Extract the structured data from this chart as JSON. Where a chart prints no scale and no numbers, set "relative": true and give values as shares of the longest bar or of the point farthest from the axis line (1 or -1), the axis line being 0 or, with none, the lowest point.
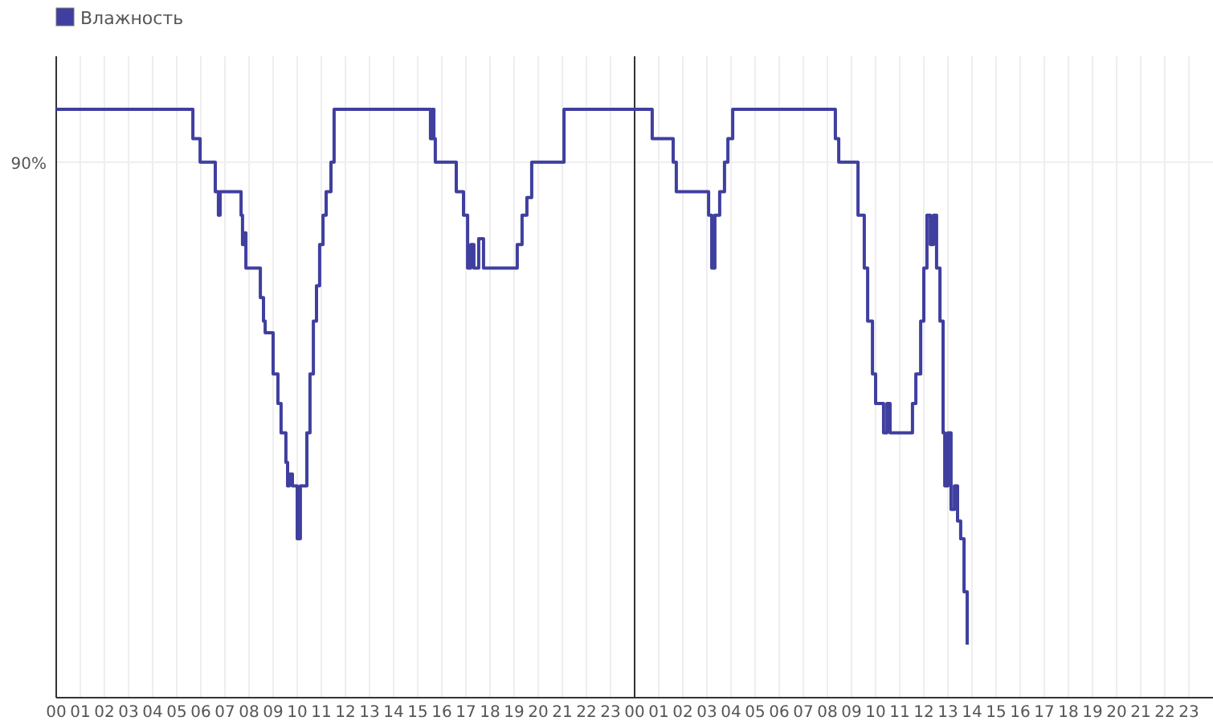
{
  "chart_data": {
    "type": "step",
    "relative": true,
    "legend": "top left",
    "grid": "x",
    "xlim": [
      0,
      48
    ],
    "xticks": [
      {
        "value": 0,
        "label": "00"
      },
      {
        "value": 1,
        "label": "01"
      },
      {
        "value": 2,
        "label": "02"
      },
      {
        "value": 3,
        "label": "03"
      },
      {
        "value": 4,
        "label": "04"
      },
      {
        "value": 5,
        "label": "05"
      },
      {
        "value": 6,
        "label": "06"
      },
      {
        "value": 7,
        "label": "07"
      },
      {
        "value": 8,
        "label": "08"
      },
      {
        "value": 9,
        "label": "09"
      },
      {
        "value": 10,
        "label": "10"
      },
      {
        "value": 11,
        "label": "11"
      },
      {
        "value": 12,
        "label": "12"
      },
      {
        "value": 13,
        "label": "13"
      },
      {
        "value": 14,
        "label": "14"
      },
      {
        "value": 15,
        "label": "15"
      },
      {
        "value": 16,
        "label": "16"
      },
      {
        "value": 17,
        "label": "17"
      },
      {
        "value": 18,
        "label": "18"
      },
      {
        "value": 19,
        "label": "19"
      },
      {
        "value": 20,
        "label": "20"
      },
      {
        "value": 21,
        "label": "21"
      },
      {
        "value": 22,
        "label": "22"
      },
      {
        "value": 23,
        "label": "23"
      },
      {
        "value": 24,
        "label": "00"
      },
      {
        "value": 25,
        "label": "01"
      },
      {
        "value": 26,
        "label": "02"
      },
      {
        "value": 27,
        "label": "03"
      },
      {
        "value": 28,
        "label": "04"
      },
      {
        "value": 29,
        "label": "05"
      },
      {
        "value": 30,
        "label": "06"
      },
      {
        "value": 31,
        "label": "07"
      },
      {
        "value": 32,
        "label": "08"
      },
      {
        "value": 33,
        "label": "09"
      },
      {
        "value": 34,
        "label": "10"
      },
      {
        "value": 35,
        "label": "11"
      },
      {
        "value": 36,
        "label": "12"
      },
      {
        "value": 37,
        "label": "13"
      },
      {
        "value": 38,
        "label": "14"
      },
      {
        "value": 39,
        "label": "15"
      },
      {
        "value": 40,
        "label": "16"
      },
      {
        "value": 41,
        "label": "17"
      },
      {
        "value": 42,
        "label": "18"
      },
      {
        "value": 43,
        "label": "19"
      },
      {
        "value": 44,
        "label": "20"
      },
      {
        "value": 45,
        "label": "21"
      },
      {
        "value": 46,
        "label": "22"
      },
      {
        "value": 47,
        "label": "23"
      }
    ],
    "annotations": [
      "90%"
    ],
    "ref_lines": [
      {
        "axis": "y",
        "value": 0.91,
        "color": "#eeeeee"
      },
      {
        "axis": "x",
        "value": 24,
        "color": "#333333"
      }
    ],
    "series": [
      {
        "name": "Влажность",
        "color": "#3f3f9f",
        "x": [
          0,
          5.67,
          5.97,
          6.6,
          6.73,
          6.8,
          7.67,
          7.73,
          7.8,
          7.87,
          8.47,
          8.6,
          8.67,
          9.0,
          9.2,
          9.33,
          9.53,
          9.6,
          9.67,
          9.8,
          10.0,
          10.13,
          10.4,
          10.53,
          10.67,
          10.8,
          10.93,
          11.07,
          11.2,
          11.4,
          11.53,
          15.53,
          15.6,
          15.67,
          15.73,
          16.6,
          16.9,
          17.07,
          17.2,
          17.33,
          17.53,
          17.73,
          19.13,
          19.33,
          19.53,
          19.73,
          21.07,
          24.73,
          25.6,
          25.73,
          27.07,
          27.2,
          27.33,
          27.53,
          27.73,
          27.87,
          28.07,
          32.33,
          32.47,
          32.6,
          33.27,
          33.53,
          33.67,
          33.87,
          34.0,
          34.33,
          34.47,
          34.6,
          34.73,
          35.53,
          35.67,
          35.87,
          36.0,
          36.13,
          36.27,
          36.4,
          36.53,
          36.67,
          36.8,
          36.87,
          37.0,
          37.13,
          37.27,
          37.4,
          37.53,
          37.67,
          37.8
        ],
        "values": [
          1.0,
          0.95,
          0.91,
          0.86,
          0.82,
          0.86,
          0.82,
          0.77,
          0.79,
          0.73,
          0.68,
          0.64,
          0.62,
          0.55,
          0.5,
          0.45,
          0.4,
          0.36,
          0.38,
          0.36,
          0.27,
          0.36,
          0.45,
          0.55,
          0.64,
          0.7,
          0.77,
          0.82,
          0.86,
          0.91,
          1.0,
          0.95,
          1.0,
          0.95,
          0.91,
          0.86,
          0.82,
          0.73,
          0.77,
          0.73,
          0.78,
          0.73,
          0.77,
          0.82,
          0.85,
          0.91,
          1.0,
          0.95,
          0.91,
          0.86,
          0.82,
          0.73,
          0.82,
          0.86,
          0.91,
          0.95,
          1.0,
          0.95,
          0.91,
          0.91,
          0.82,
          0.73,
          0.64,
          0.55,
          0.5,
          0.45,
          0.5,
          0.45,
          0.45,
          0.5,
          0.55,
          0.64,
          0.73,
          0.82,
          0.77,
          0.82,
          0.73,
          0.64,
          0.45,
          0.36,
          0.45,
          0.32,
          0.36,
          0.3,
          0.27,
          0.18,
          0.09
        ]
      }
    ]
  }
}
